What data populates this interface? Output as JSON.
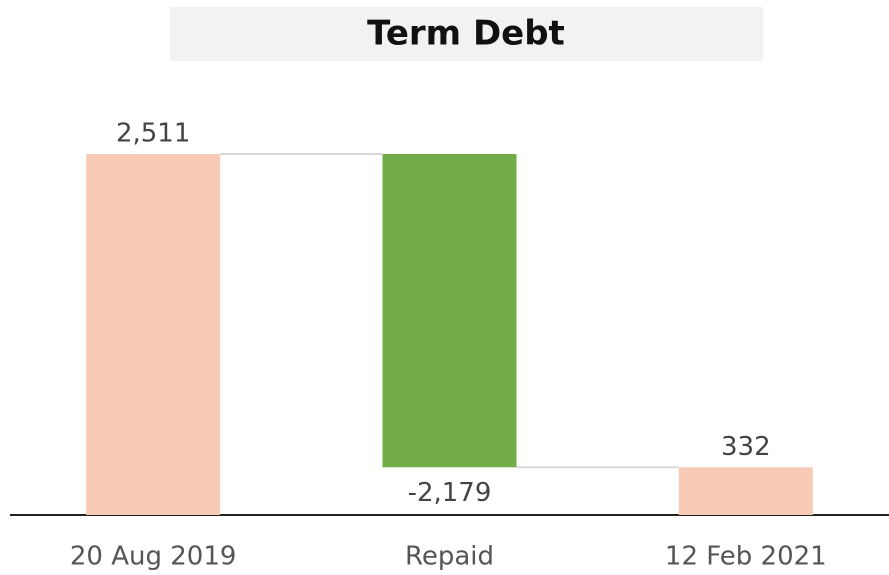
{
  "chart_data": {
    "type": "waterfall",
    "title": "Term Debt",
    "categories": [
      "20 Aug 2019",
      "Repaid",
      "12 Feb 2021"
    ],
    "values": [
      2511,
      -2179,
      332
    ],
    "value_labels": [
      "2,511",
      "-2,179",
      "332"
    ],
    "measures": [
      "total",
      "relative",
      "total"
    ],
    "colors": [
      "#f8cbb7",
      "#72ac48",
      "#f8cbb7"
    ]
  }
}
